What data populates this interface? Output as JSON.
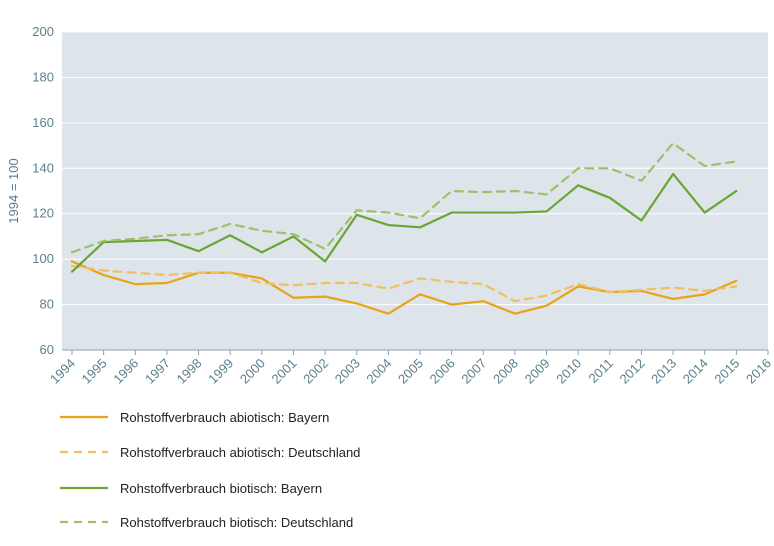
{
  "chart_data": {
    "type": "line",
    "ylabel": "1994 = 100",
    "ylim": [
      60,
      200
    ],
    "yticks": [
      60,
      80,
      100,
      120,
      140,
      160,
      180,
      200
    ],
    "grid": true,
    "legend_position": "bottom-left",
    "x": [
      "1994",
      "1995",
      "1996",
      "1997",
      "1998",
      "1999",
      "2000",
      "2001",
      "2002",
      "2003",
      "2004",
      "2005",
      "2006",
      "2007",
      "2008",
      "2009",
      "2010",
      "2011",
      "2012",
      "2013",
      "2014",
      "2015",
      "2016"
    ],
    "series": [
      {
        "name": "Rohstoffverbrauch abiotisch: Bayern",
        "color": "#e8a317",
        "dashed": false,
        "values": [
          99,
          93,
          89,
          89.5,
          94,
          94,
          91.5,
          83,
          83.5,
          80.5,
          76,
          84.5,
          80,
          81.5,
          76,
          79.5,
          88,
          85.5,
          86,
          82.5,
          84.5,
          90.5,
          null
        ]
      },
      {
        "name": "Rohstoffverbrauch abiotisch: Deutschland",
        "color": "#f0c060",
        "dashed": true,
        "values": [
          97,
          95,
          94,
          93,
          94,
          94,
          89.5,
          88.5,
          89.5,
          89.5,
          87,
          91.5,
          90,
          89,
          81.5,
          84,
          89,
          85.5,
          86.5,
          87.5,
          86,
          88,
          null
        ]
      },
      {
        "name": "Rohstoffverbrauch biotisch: Bayern",
        "color": "#6aa534",
        "dashed": false,
        "values": [
          94.5,
          107.5,
          108,
          108.5,
          103.5,
          110.5,
          103,
          110,
          99,
          119.5,
          115,
          114,
          120.5,
          120.5,
          120.5,
          121,
          132.5,
          127,
          117,
          137.5,
          120.5,
          130,
          null
        ]
      },
      {
        "name": "Rohstoffverbrauch biotisch: Deutschland",
        "color": "#9cc16a",
        "dashed": true,
        "values": [
          103,
          108,
          109,
          110.5,
          111,
          115.5,
          112.5,
          111,
          104.5,
          121.5,
          120.5,
          118,
          130,
          129.5,
          130,
          128.5,
          140,
          140,
          134.5,
          151,
          141,
          143,
          null
        ]
      }
    ]
  }
}
